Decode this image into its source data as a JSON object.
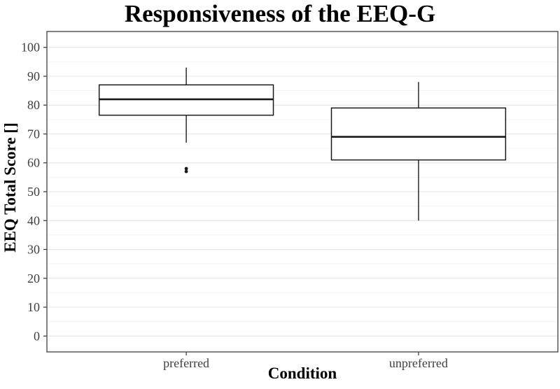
{
  "figure": {
    "title": "Responsiveness of the EEQ-G"
  },
  "chart_data": {
    "type": "boxplot",
    "title": "Responsiveness of the EEQ-G",
    "xlabel": "Condition",
    "ylabel": "EEQ Total Score []",
    "ylim": [
      -5.5,
      105.5
    ],
    "yticks": [
      0,
      10,
      20,
      30,
      40,
      50,
      60,
      70,
      80,
      90,
      100
    ],
    "minor_gridline_step": 5,
    "grid": {
      "major": true,
      "minor": true
    },
    "legend": "none",
    "categories": [
      "preferred",
      "unpreferred"
    ],
    "series": [
      {
        "category": "preferred",
        "whisker_low": 67,
        "q1": 76.5,
        "median": 82,
        "q3": 87,
        "whisker_high": 93,
        "outliers": [
          57,
          58
        ]
      },
      {
        "category": "unpreferred",
        "whisker_low": 40,
        "q1": 61,
        "median": 69,
        "q3": 79,
        "whisker_high": 88,
        "outliers": []
      }
    ],
    "colors": {
      "box_fill": "#ffffff",
      "box_stroke": "#1a1a1a",
      "median_stroke": "#1a1a1a",
      "outlier_fill": "#1a1a1a",
      "panel_border": "#4d4d4d",
      "grid_major": "#e7e7e7",
      "grid_minor": "#f3f3f3",
      "tick": "#333333",
      "tick_label": "#404040"
    }
  }
}
